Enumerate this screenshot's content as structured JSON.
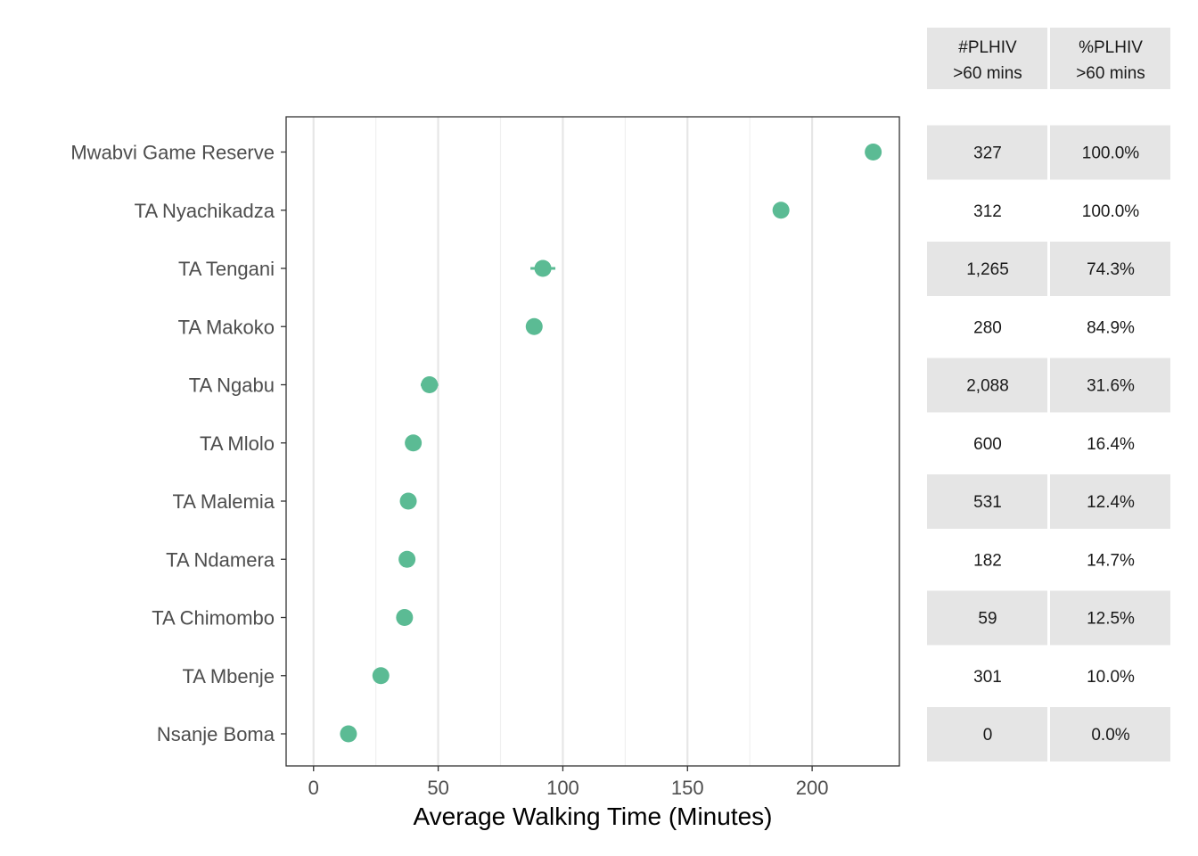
{
  "chart_data": {
    "type": "scatter",
    "xlabel": "Average Walking Time (Minutes)",
    "ylabel": "",
    "title": "",
    "xlim": [
      -11,
      235
    ],
    "x_ticks": [
      0,
      50,
      100,
      150,
      200
    ],
    "x_tick_labels": [
      "0",
      "50",
      "100",
      "150",
      "200"
    ],
    "grid": true,
    "categories": [
      "Mwabvi Game Reserve",
      "TA Nyachikadza",
      "TA Tengani",
      "TA Makoko",
      "TA Ngabu",
      "TA Mlolo",
      "TA Malemia",
      "TA Ndamera",
      "TA Chimombo",
      "TA Mbenje",
      "Nsanje Boma"
    ],
    "values": [
      224.5,
      187.5,
      92,
      88.5,
      46.5,
      40,
      38,
      37.5,
      36.5,
      27,
      14
    ],
    "error_low": [
      224.5,
      187.5,
      87,
      88.5,
      43,
      40,
      38,
      37.5,
      36.5,
      27,
      14
    ],
    "error_high": [
      224.5,
      187.5,
      97,
      88.5,
      50,
      40,
      38,
      37.5,
      36.5,
      27,
      14
    ],
    "point_color": "#5bbb94"
  },
  "table": {
    "headers": [
      {
        "line1": "#PLHIV",
        "line2": ">60 mins"
      },
      {
        "line1": "%PLHIV",
        "line2": ">60 mins"
      }
    ],
    "rows": [
      [
        "327",
        "100.0%"
      ],
      [
        "312",
        "100.0%"
      ],
      [
        "1,265",
        "74.3%"
      ],
      [
        "280",
        "84.9%"
      ],
      [
        "2,088",
        "31.6%"
      ],
      [
        "600",
        "16.4%"
      ],
      [
        "531",
        "12.4%"
      ],
      [
        "182",
        "14.7%"
      ],
      [
        "59",
        "12.5%"
      ],
      [
        "301",
        "10.0%"
      ],
      [
        "0",
        "0.0%"
      ]
    ],
    "shade_color": "#e5e5e5"
  }
}
